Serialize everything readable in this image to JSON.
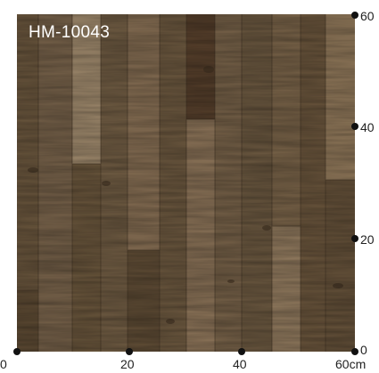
{
  "product_code": "HM-10043",
  "scale": {
    "unit": "cm",
    "x_ticks": [
      {
        "value": 0,
        "label": "0"
      },
      {
        "value": 20,
        "label": "20"
      },
      {
        "value": 40,
        "label": "40"
      },
      {
        "value": 60,
        "label": "60cm"
      }
    ],
    "y_ticks": [
      {
        "value": 60,
        "label": "60"
      },
      {
        "value": 40,
        "label": "40"
      },
      {
        "value": 20,
        "label": "20"
      },
      {
        "value": 0,
        "label": "0"
      }
    ]
  },
  "colors": {
    "wood_base": "#6e5a40",
    "wood_light": "#9c8466",
    "wood_dark": "#4f3f2b",
    "label_text": "#ffffff",
    "tick": "#111111"
  }
}
